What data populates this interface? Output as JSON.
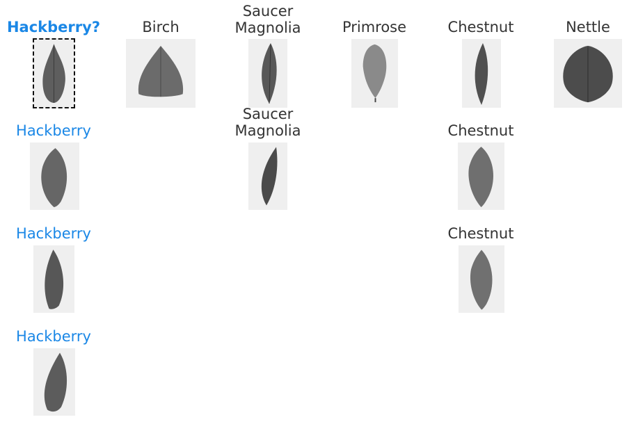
{
  "query": {
    "label": "Hackberry?"
  },
  "classes": {
    "birch": "Birch",
    "saucer_magnolia_line1": "Saucer",
    "saucer_magnolia_line2": "Magnolia",
    "primrose": "Primrose",
    "chestnut": "Chestnut",
    "nettle": "Nettle",
    "hackberry": "Hackberry"
  },
  "colors": {
    "accent": "#1a87e6",
    "text": "#333333",
    "tile_bg": "#efefef"
  }
}
